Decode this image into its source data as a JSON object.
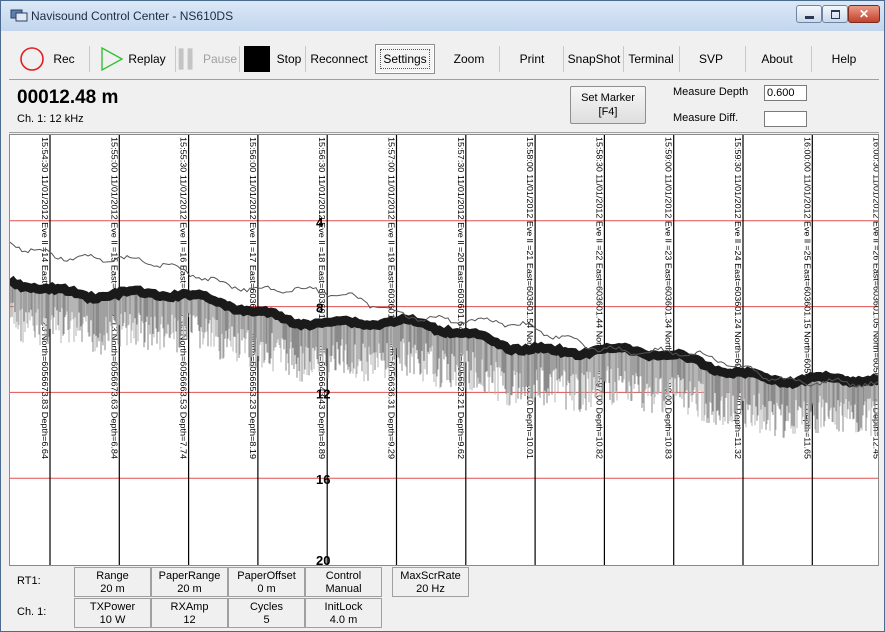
{
  "window": {
    "title": "Navisound Control Center - NS610DS"
  },
  "toolbar": {
    "rec": "Rec",
    "replay": "Replay",
    "pause": "Pause",
    "stop": "Stop",
    "reconnect": "Reconnect",
    "settings": "Settings",
    "zoom": "Zoom",
    "print": "Print",
    "snapshot": "SnapShot",
    "terminal": "Terminal",
    "svp": "SVP",
    "about": "About",
    "help": "Help"
  },
  "status": {
    "depth": "00012.48 m",
    "channel": "Ch. 1: 12 kHz",
    "set_marker_line1": "Set Marker",
    "set_marker_line2": "[F4]",
    "measure_depth_label": "Measure Depth",
    "measure_depth_value": "0.600",
    "measure_diff_label": "Measure Diff.",
    "measure_diff_value": ""
  },
  "echogram": {
    "depth_scale": [
      "4",
      "8",
      "12",
      "16",
      "20"
    ],
    "marker_labels": [
      "15:54:30 11/01/2012 Eve ll =14 East=603602.23 North=6056673.83 Depth=6.64",
      "15:55:00 11/01/2012 Eve ll =15 East=603602.13 North=6056673.63 Depth=6.84",
      "15:55:30 11/01/2012 Eve ll =16 East=603602.03 North=6056663.53 Depth=7.74",
      "15:56:00 11/01/2012 Eve ll =17 East=603601.93 North=6056653.23 Depth=8.19",
      "15:56:30 11/01/2012 Eve ll =18 East=603601.83 North=6056643.43 Depth=8.89",
      "15:57:00 11/01/2012 Eve ll =19 East=603601.73 North=6056636.31 Depth=9.29",
      "15:57:30 11/01/2012 Eve ll =20 East=603601.64 North=6056623.21 Depth=9.62",
      "15:58:00 11/01/2012 Eve ll =21 East=603601.54 North=6056610.10 Depth=10.01",
      "15:58:30 11/01/2012 Eve ll =22 East=603601.44 North=6056597.00 Depth=10.82",
      "15:59:00 11/01/2012 Eve ll =23 East=603601.34 North=6056590.00 Depth=10.83",
      "15:59:30 11/01/2012 Eve ll =24 East=603601.24 North=6056580.80 Depth=11.32",
      "16:00:00 11/01/2012 Eve ll =25 East=603601.15 North=6056570.70 Depth=11.65",
      "16:00:30 11/01/2012 Eve ll =26 East=603601.05 North=6056566.60 Depth=12.45"
    ]
  },
  "params": {
    "rt1_label": "RT1:",
    "ch1_label": "Ch. 1:",
    "row1": [
      {
        "name": "Range",
        "value": "20 m"
      },
      {
        "name": "PaperRange",
        "value": "20 m"
      },
      {
        "name": "PaperOffset",
        "value": "0 m"
      },
      {
        "name": "Control",
        "value": "Manual"
      },
      {
        "name": "MaxScrRate",
        "value": "20 Hz"
      }
    ],
    "row2": [
      {
        "name": "TXPower",
        "value": "10 W"
      },
      {
        "name": "RXAmp",
        "value": "12"
      },
      {
        "name": "Cycles",
        "value": "5"
      },
      {
        "name": "InitLock",
        "value": "4.0 m"
      }
    ]
  },
  "colors": {
    "depth_line": "#e05050",
    "rec_icon": "#e02020",
    "replay_icon": "#33c233",
    "bottom_echo": "#1a1a1a"
  }
}
